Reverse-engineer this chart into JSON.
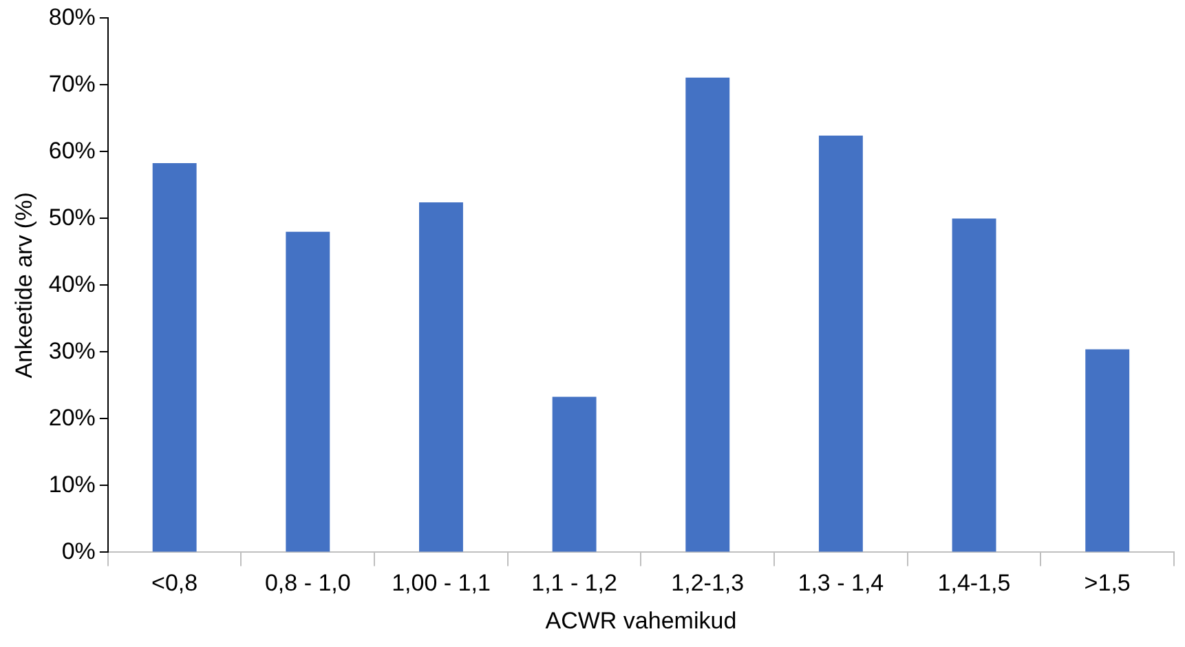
{
  "chart_data": {
    "type": "bar",
    "xlabel": "ACWR vahemikud",
    "ylabel": "Ankeetide arv (%)",
    "categories": [
      "<0,8",
      "0,8 - 1,0",
      "1,00 - 1,1",
      "1,1 - 1,2",
      "1,2-1,3",
      "1,3 - 1,4",
      "1,4-1,5",
      ">1,5"
    ],
    "values": [
      58.3,
      48,
      52.4,
      23.3,
      71.1,
      62.4,
      50,
      30.4
    ],
    "color": "#4472c4",
    "ylim": [
      0,
      80
    ],
    "yticks": [
      {
        "value": 0,
        "label": "0%"
      },
      {
        "value": 10,
        "label": "10%"
      },
      {
        "value": 20,
        "label": "20%"
      },
      {
        "value": 30,
        "label": "30%"
      },
      {
        "value": 40,
        "label": "40%"
      },
      {
        "value": 50,
        "label": "50%"
      },
      {
        "value": 60,
        "label": "60%"
      },
      {
        "value": 70,
        "label": "70%"
      },
      {
        "value": 80,
        "label": "80%"
      }
    ],
    "grid": false,
    "legend": false
  }
}
